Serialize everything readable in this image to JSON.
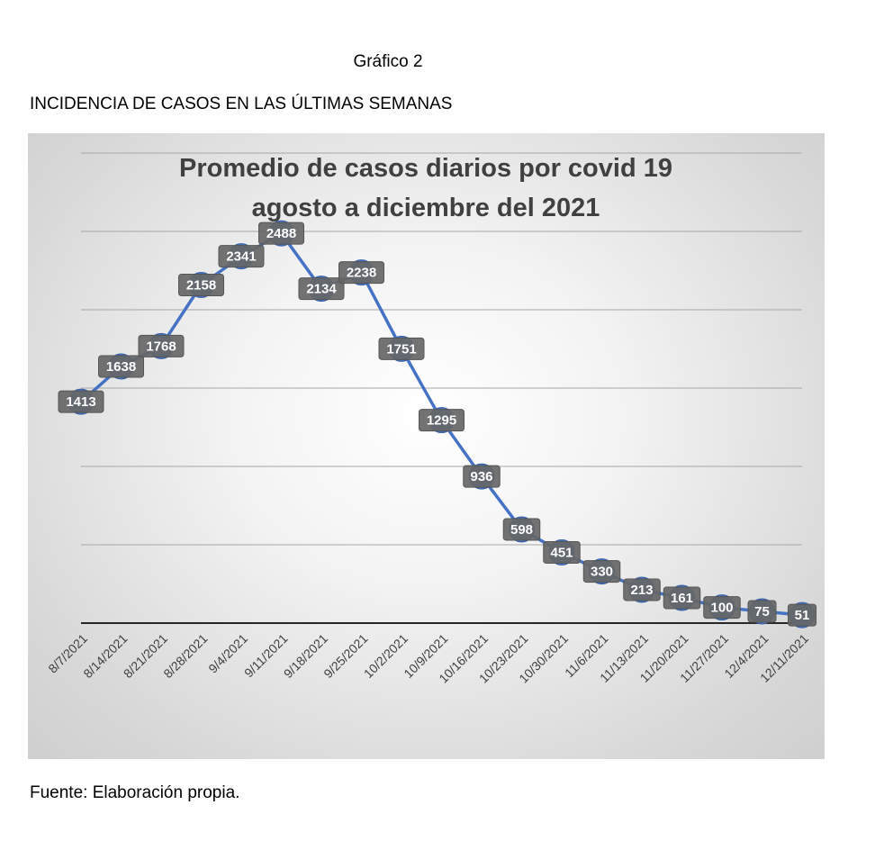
{
  "page": {
    "caption": "Gráfico 2",
    "heading": "INCIDENCIA DE CASOS EN LAS ÚLTIMAS SEMANAS",
    "source": "Fuente: Elaboración propia."
  },
  "chart_data": {
    "type": "line",
    "title_lines": [
      "Promedio de casos diarios por covid 19",
      "agosto a diciembre del 2021"
    ],
    "categories": [
      "8/7/2021",
      "8/14/2021",
      "8/21/2021",
      "8/28/2021",
      "9/4/2021",
      "9/11/2021",
      "9/18/2021",
      "9/25/2021",
      "10/2/2021",
      "10/9/2021",
      "10/16/2021",
      "10/23/2021",
      "10/30/2021",
      "11/6/2021",
      "11/13/2021",
      "11/20/2021",
      "11/27/2021",
      "12/4/2021",
      "12/11/2021"
    ],
    "series": [
      {
        "values": [
          1413,
          1638,
          1768,
          2158,
          2341,
          2488,
          2134,
          2238,
          1751,
          1295,
          936,
          598,
          451,
          330,
          213,
          161,
          100,
          75,
          51
        ]
      }
    ],
    "ylim": [
      0,
      3000
    ],
    "y_gridlines": [
      500,
      1000,
      1500,
      2000,
      2500,
      3000
    ],
    "grid": true,
    "data_labels": true,
    "colors": {
      "line": "#4472C4",
      "marker": "#4472C4",
      "label_bg": "#666666",
      "label_text": "#ffffff",
      "title": "#404040",
      "tick": "#404040"
    }
  }
}
